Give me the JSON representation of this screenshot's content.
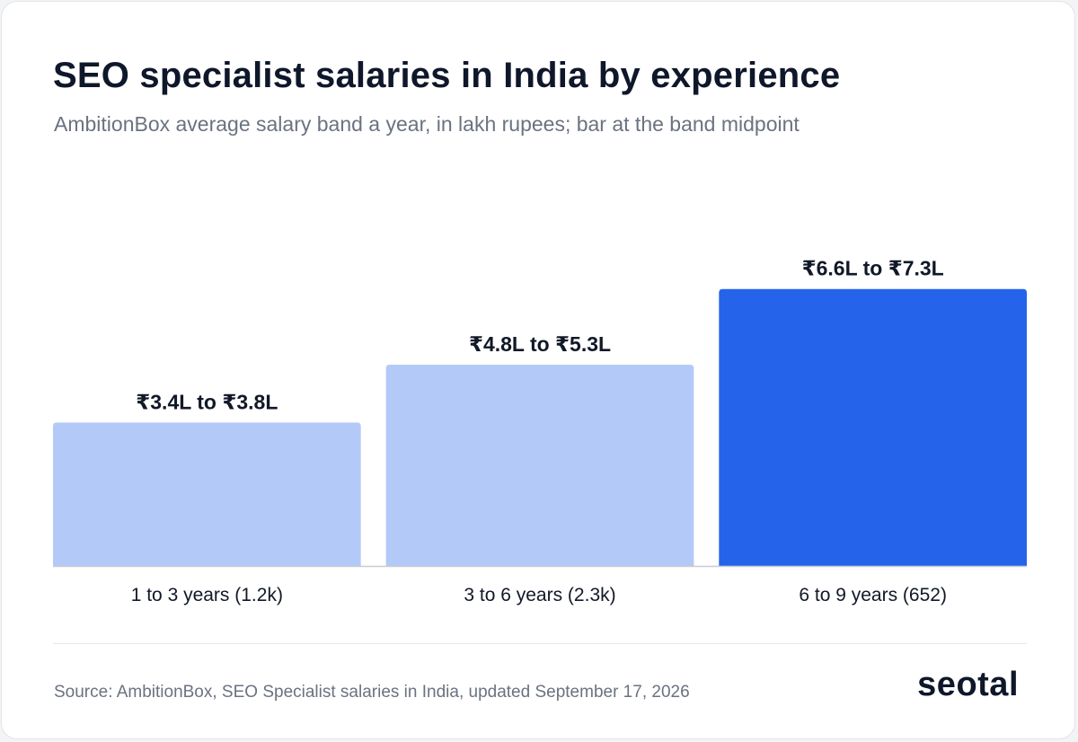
{
  "header": {
    "title": "SEO specialist salaries in India by experience",
    "subtitle": "AmbitionBox average salary band a year, in lakh rupees; bar at the band midpoint"
  },
  "footer": {
    "source": "Source: AmbitionBox, SEO Specialist salaries in India, updated September 17, 2026",
    "brand": "seotal"
  },
  "colors": {
    "bar_light": "#b3c9f7",
    "bar_highlight": "#2563eb",
    "baseline": "#c8ccd3",
    "label": "#111827"
  },
  "chart_data": {
    "type": "bar",
    "title": "SEO specialist salaries in India by experience",
    "xlabel": "",
    "ylabel": "",
    "grid": false,
    "categories": [
      "1 to 3 years (1.2k)",
      "3 to 6 years (2.3k)",
      "6 to 9 years (652)"
    ],
    "values": [
      3.6,
      5.05,
      6.95
    ],
    "bands": [
      [
        3.4,
        3.8
      ],
      [
        4.8,
        5.3
      ],
      [
        6.6,
        7.3
      ]
    ],
    "data_labels": [
      "₹3.4L to ₹3.8L",
      "₹4.8L to ₹5.3L",
      "₹6.6L to ₹7.3L"
    ],
    "highlight_index": 2,
    "ylim": [
      0,
      10.1
    ]
  }
}
